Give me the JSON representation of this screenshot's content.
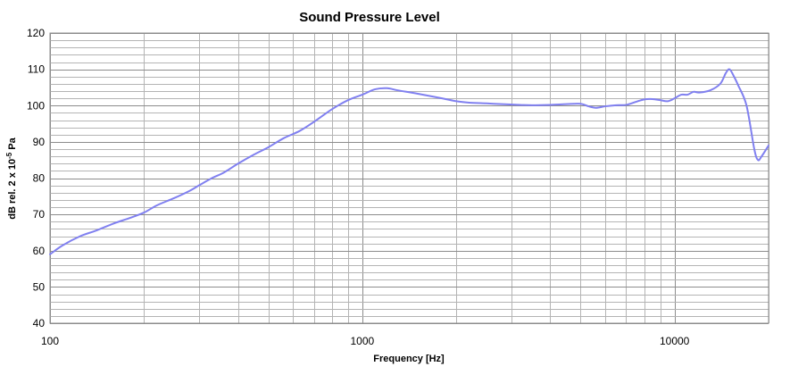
{
  "chart_data": {
    "type": "line",
    "title": "Sound Pressure Level",
    "xlabel": "Frequency [Hz]",
    "ylabel_parts": {
      "base": "dB rel. 2 x 10",
      "exp": "-5",
      "unit": " Pa"
    },
    "x_scale": "log",
    "xlim": [
      100,
      20000
    ],
    "ylim": [
      40,
      120
    ],
    "x_ticks": [
      100,
      1000,
      10000
    ],
    "x_tick_labels": [
      "100",
      "1000",
      "10000"
    ],
    "y_ticks": [
      40,
      50,
      60,
      70,
      80,
      90,
      100,
      110,
      120
    ],
    "y_tick_labels": [
      "40",
      "50",
      "60",
      "70",
      "80",
      "90",
      "100",
      "110",
      "120"
    ],
    "grid": true,
    "legend": "none",
    "line_color": "#8080f0",
    "series": [
      {
        "x": [
          100,
          110,
          125,
          140,
          160,
          180,
          200,
          220,
          250,
          280,
          300,
          330,
          360,
          400,
          450,
          500,
          560,
          630,
          700,
          800,
          900,
          1000,
          1100,
          1200,
          1300,
          1500,
          1800,
          2000,
          2200,
          2500,
          2800,
          3200,
          3500,
          4000,
          4500,
          5000,
          5300,
          5600,
          6000,
          6500,
          7000,
          7500,
          8000,
          8500,
          9000,
          9500,
          10000,
          10500,
          11000,
          11500,
          12000,
          13000,
          14000,
          14600,
          15000,
          15500,
          16000,
          17000,
          18000,
          18500,
          19000,
          20000
        ],
        "y": [
          59,
          61.5,
          64,
          65.5,
          67.5,
          69,
          70.5,
          72.5,
          74.5,
          76.5,
          78,
          80,
          81.5,
          84,
          86.5,
          88.5,
          91,
          93,
          95.5,
          99,
          101.5,
          103,
          104.5,
          104.8,
          104.2,
          103.3,
          102,
          101.2,
          100.8,
          100.6,
          100.4,
          100.2,
          100.1,
          100.2,
          100.4,
          100.5,
          99.8,
          99.4,
          99.8,
          100.1,
          100.2,
          101,
          101.7,
          101.8,
          101.5,
          101.2,
          102,
          103,
          103,
          103.8,
          103.6,
          104.2,
          106,
          109,
          110,
          108,
          105.5,
          100,
          88,
          85,
          86,
          89
        ]
      }
    ]
  }
}
